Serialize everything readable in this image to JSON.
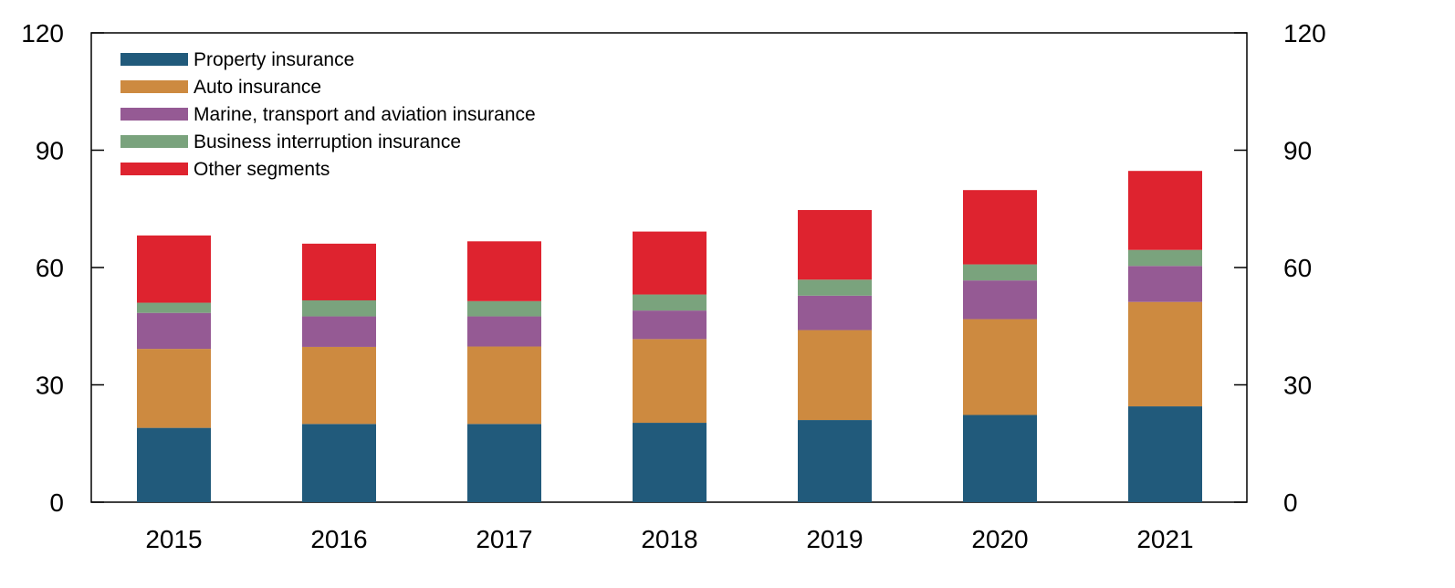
{
  "chart_data": {
    "type": "bar",
    "stacked": true,
    "categories": [
      "2015",
      "2016",
      "2017",
      "2018",
      "2019",
      "2020",
      "2021"
    ],
    "series": [
      {
        "name": "Property insurance",
        "color": "#215a7b",
        "values": [
          19,
          20,
          20,
          20.3,
          21,
          22.3,
          24.5
        ]
      },
      {
        "name": "Auto insurance",
        "color": "#cd8a40",
        "values": [
          20.2,
          19.7,
          19.8,
          21.4,
          23,
          24.5,
          26.7
        ]
      },
      {
        "name": "Marine, transport and aviation insurance",
        "color": "#955a94",
        "values": [
          9.2,
          7.8,
          7.7,
          7.3,
          8.8,
          9.9,
          9.2
        ]
      },
      {
        "name": "Business interruption insurance",
        "color": "#7aa37d",
        "values": [
          2.6,
          4.1,
          3.9,
          4.1,
          4.1,
          4.1,
          4.1
        ]
      },
      {
        "name": "Other segments",
        "color": "#de232f",
        "values": [
          17.2,
          14.5,
          15.3,
          16.1,
          17.8,
          19.0,
          20.2
        ]
      }
    ],
    "y_ticks": [
      "0",
      "30",
      "60",
      "90",
      "120"
    ],
    "ylim": [
      0,
      120
    ],
    "legend_position": "top-left",
    "right_axis": true,
    "grid": false
  }
}
